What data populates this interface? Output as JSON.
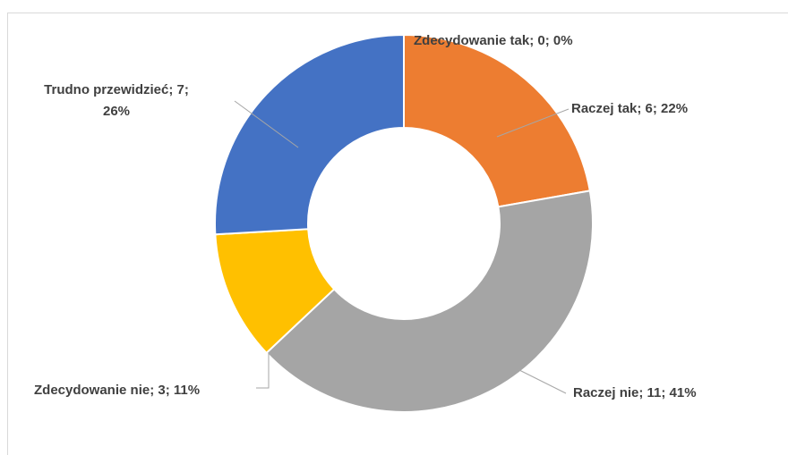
{
  "chart_data": {
    "type": "donut",
    "categories": [
      "Zdecydowanie tak",
      "Raczej tak",
      "Raczej nie",
      "Zdecydowanie nie",
      "Trudno przewidzieć"
    ],
    "values": [
      0,
      6,
      11,
      3,
      7
    ],
    "value_labels": [
      "Zdecydowanie tak; 0; 0%",
      "Raczej tak; 6; 22%",
      "Raczej nie; 11; 41%",
      "Zdecydowanie nie; 3; 11%",
      "Trudno przewidzieć; 7; 26%"
    ],
    "colors": [
      "#4472C4",
      "#ED7D31",
      "#A5A5A5",
      "#FFC000",
      "#4472C4"
    ]
  }
}
